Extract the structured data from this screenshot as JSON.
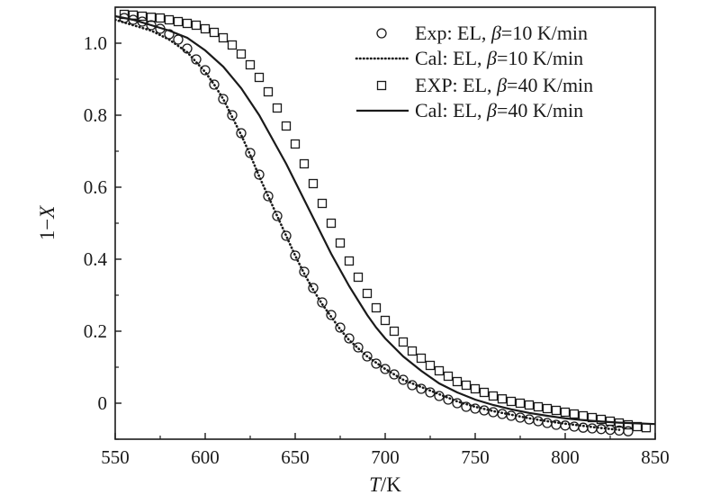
{
  "chart_data": {
    "type": "scatter",
    "title": "",
    "xlabel": {
      "var": "T",
      "unit": "/K"
    },
    "ylabel": {
      "prefix": "1−",
      "var": "X"
    },
    "xlim": [
      550,
      850
    ],
    "ylim": [
      -0.1,
      1.1
    ],
    "xticks": [
      550,
      600,
      650,
      700,
      750,
      800,
      850
    ],
    "xtick_labels": [
      "550",
      "600",
      "650",
      "700",
      "750",
      "800",
      "850"
    ],
    "yticks": [
      0,
      0.2,
      0.4,
      0.6,
      0.8,
      1.0
    ],
    "ytick_labels": [
      "0",
      "0.2",
      "0.4",
      "0.6",
      "0.8",
      "1.0"
    ],
    "grid": false,
    "legend_position": "top-right",
    "series": [
      {
        "name_prefix": "Exp: EL, ",
        "name_symbol": "β",
        "name_suffix": "=10 K/min",
        "style": "open-circle",
        "x": [
          555,
          560,
          565,
          570,
          575,
          580,
          585,
          590,
          595,
          600,
          605,
          610,
          615,
          620,
          625,
          630,
          635,
          640,
          645,
          650,
          655,
          660,
          665,
          670,
          675,
          680,
          685,
          690,
          695,
          700,
          705,
          710,
          715,
          720,
          725,
          730,
          735,
          740,
          745,
          750,
          755,
          760,
          765,
          770,
          775,
          780,
          785,
          790,
          795,
          800,
          805,
          810,
          815,
          820,
          825,
          830,
          835
        ],
        "y": [
          1.07,
          1.065,
          1.06,
          1.05,
          1.04,
          1.025,
          1.01,
          0.985,
          0.955,
          0.925,
          0.885,
          0.845,
          0.8,
          0.75,
          0.695,
          0.635,
          0.575,
          0.52,
          0.465,
          0.41,
          0.365,
          0.32,
          0.28,
          0.245,
          0.21,
          0.18,
          0.155,
          0.13,
          0.11,
          0.095,
          0.08,
          0.065,
          0.05,
          0.04,
          0.03,
          0.02,
          0.01,
          0.0,
          -0.01,
          -0.015,
          -0.02,
          -0.025,
          -0.03,
          -0.035,
          -0.04,
          -0.045,
          -0.05,
          -0.055,
          -0.06,
          -0.062,
          -0.065,
          -0.068,
          -0.07,
          -0.072,
          -0.074,
          -0.076,
          -0.078
        ]
      },
      {
        "name_prefix": "Cal: EL, ",
        "name_symbol": "β",
        "name_suffix": "=10 K/min",
        "style": "dotted-line",
        "x": [
          550,
          560,
          570,
          580,
          590,
          600,
          605,
          610,
          615,
          620,
          625,
          630,
          635,
          640,
          645,
          650,
          655,
          660,
          665,
          670,
          675,
          680,
          690,
          700,
          710,
          720,
          730,
          740,
          750,
          760,
          770,
          780,
          790,
          800,
          810,
          820,
          830
        ],
        "y": [
          1.065,
          1.05,
          1.035,
          1.01,
          0.975,
          0.92,
          0.885,
          0.845,
          0.795,
          0.745,
          0.69,
          0.63,
          0.575,
          0.52,
          0.465,
          0.41,
          0.36,
          0.315,
          0.275,
          0.24,
          0.205,
          0.175,
          0.13,
          0.095,
          0.065,
          0.045,
          0.025,
          0.005,
          -0.01,
          -0.022,
          -0.032,
          -0.042,
          -0.05,
          -0.057,
          -0.063,
          -0.069,
          -0.074
        ]
      },
      {
        "name_prefix": "EXP: EL, ",
        "name_symbol": "β",
        "name_suffix": "=40 K/min",
        "style": "open-square",
        "x": [
          555,
          560,
          565,
          570,
          575,
          580,
          585,
          590,
          595,
          600,
          605,
          610,
          615,
          620,
          625,
          630,
          635,
          640,
          645,
          650,
          655,
          660,
          665,
          670,
          675,
          680,
          685,
          690,
          695,
          700,
          705,
          710,
          715,
          720,
          725,
          730,
          735,
          740,
          745,
          750,
          755,
          760,
          765,
          770,
          775,
          780,
          785,
          790,
          795,
          800,
          805,
          810,
          815,
          820,
          825,
          830,
          835,
          840,
          845
        ],
        "y": [
          1.08,
          1.078,
          1.075,
          1.072,
          1.07,
          1.065,
          1.06,
          1.055,
          1.05,
          1.04,
          1.03,
          1.015,
          0.995,
          0.97,
          0.94,
          0.905,
          0.865,
          0.82,
          0.77,
          0.72,
          0.665,
          0.61,
          0.555,
          0.5,
          0.445,
          0.395,
          0.35,
          0.305,
          0.265,
          0.23,
          0.2,
          0.17,
          0.145,
          0.125,
          0.105,
          0.09,
          0.075,
          0.06,
          0.05,
          0.04,
          0.03,
          0.02,
          0.012,
          0.005,
          0.0,
          -0.005,
          -0.01,
          -0.015,
          -0.02,
          -0.025,
          -0.03,
          -0.035,
          -0.04,
          -0.045,
          -0.05,
          -0.055,
          -0.06,
          -0.065,
          -0.068
        ]
      },
      {
        "name_prefix": "Cal: EL, ",
        "name_symbol": "β",
        "name_suffix": "=40 K/min",
        "style": "solid-line",
        "x": [
          550,
          560,
          570,
          580,
          590,
          600,
          610,
          620,
          630,
          640,
          645,
          650,
          655,
          660,
          665,
          670,
          675,
          680,
          685,
          690,
          695,
          700,
          710,
          720,
          730,
          740,
          750,
          760,
          770,
          780,
          790,
          800,
          810,
          820,
          830,
          840,
          850
        ],
        "y": [
          1.075,
          1.065,
          1.05,
          1.035,
          1.015,
          0.98,
          0.935,
          0.875,
          0.8,
          0.71,
          0.665,
          0.615,
          0.565,
          0.515,
          0.465,
          0.415,
          0.37,
          0.325,
          0.285,
          0.245,
          0.21,
          0.18,
          0.13,
          0.09,
          0.055,
          0.03,
          0.01,
          -0.005,
          -0.017,
          -0.027,
          -0.035,
          -0.042,
          -0.047,
          -0.051,
          -0.054,
          -0.056,
          -0.058
        ]
      }
    ]
  },
  "colors": {
    "ink": "#1a1a1a",
    "background": "#ffffff"
  }
}
